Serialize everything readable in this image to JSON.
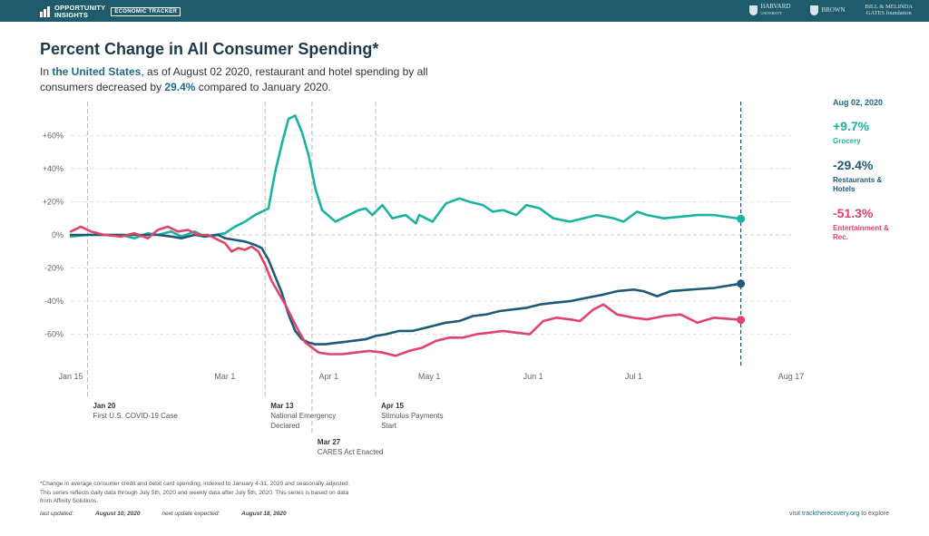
{
  "header": {
    "logo_line1": "OPPORTUNITY",
    "logo_line2": "INSIGHTS",
    "badge": "ECONOMIC TRACKER",
    "partner_harvard": "HARVARD",
    "partner_harvard_sub": "UNIVERSITY",
    "partner_brown": "BROWN",
    "partner_gates_line1": "BILL & MELINDA",
    "partner_gates_line2": "GATES foundation"
  },
  "title": "Percent Change in All Consumer Spending*",
  "subtitle": {
    "p1": "In ",
    "region": "the United States",
    "p2": ", as of August 02 2020, restaurant and hotel spending by all consumers decreased by ",
    "value": "29.4%",
    "p3": " compared to January 2020."
  },
  "legend": {
    "date": "Aug 02, 2020",
    "items": [
      {
        "value": "+9.7%",
        "name": "Grocery",
        "color": "#1ab2a0"
      },
      {
        "value": "-29.4%",
        "name": "Restaurants & Hotels",
        "color": "#1e5a78"
      },
      {
        "value": "-51.3%",
        "name": "Entertainment & Rec.",
        "color": "#e04468"
      }
    ]
  },
  "chart_data": {
    "type": "line",
    "x_type": "date",
    "xlim": [
      "2020-01-15",
      "2020-08-17"
    ],
    "ylim": [
      -75,
      75
    ],
    "y_ticks": [
      60,
      40,
      20,
      0,
      -20,
      -40,
      -60
    ],
    "y_tick_labels": [
      "+60%",
      "+40%",
      "+20%",
      "0%",
      "-20%",
      "-40%",
      "-60%"
    ],
    "x_ticks": [
      "2020-01-15",
      "2020-03-01",
      "2020-04-01",
      "2020-05-01",
      "2020-06-01",
      "2020-07-01",
      "2020-08-17"
    ],
    "x_tick_labels": [
      "Jan 15",
      "Mar 1",
      "Apr 1",
      "May 1",
      "Jun 1",
      "Jul 1",
      "Aug 17"
    ],
    "grid": true,
    "current_date": "2020-08-02",
    "events": [
      {
        "date": "2020-01-20",
        "title": "Jan 20",
        "lines": [
          "First U.S. COVID-19 Case"
        ],
        "level": 1
      },
      {
        "date": "2020-03-13",
        "title": "Mar 13",
        "lines": [
          "National Emergency",
          "Declared"
        ],
        "level": 1
      },
      {
        "date": "2020-03-27",
        "title": "Mar 27",
        "lines": [
          "CARES Act Enacted"
        ],
        "level": 2
      },
      {
        "date": "2020-04-15",
        "title": "Apr 15",
        "lines": [
          "Stimulus Payments",
          "Start"
        ],
        "level": 1
      }
    ],
    "series": [
      {
        "name": "Grocery",
        "color": "#1ab2a0",
        "x": [
          "2020-01-15",
          "2020-01-20",
          "2020-01-25",
          "2020-01-30",
          "2020-02-03",
          "2020-02-07",
          "2020-02-10",
          "2020-02-14",
          "2020-02-17",
          "2020-02-21",
          "2020-02-24",
          "2020-02-27",
          "2020-03-01",
          "2020-03-04",
          "2020-03-07",
          "2020-03-10",
          "2020-03-12",
          "2020-03-14",
          "2020-03-16",
          "2020-03-18",
          "2020-03-20",
          "2020-03-22",
          "2020-03-24",
          "2020-03-26",
          "2020-03-28",
          "2020-03-30",
          "2020-04-03",
          "2020-04-07",
          "2020-04-10",
          "2020-04-12",
          "2020-04-14",
          "2020-04-17",
          "2020-04-20",
          "2020-04-24",
          "2020-04-27",
          "2020-04-28",
          "2020-05-02",
          "2020-05-06",
          "2020-05-10",
          "2020-05-13",
          "2020-05-17",
          "2020-05-20",
          "2020-05-23",
          "2020-05-27",
          "2020-05-30",
          "2020-06-03",
          "2020-06-07",
          "2020-06-12",
          "2020-06-16",
          "2020-06-20",
          "2020-06-25",
          "2020-06-28",
          "2020-07-02",
          "2020-07-05",
          "2020-07-10",
          "2020-07-15",
          "2020-07-20",
          "2020-07-25",
          "2020-08-02"
        ],
        "values": [
          -1,
          0,
          0,
          0,
          -2,
          1,
          0,
          2,
          -1,
          2,
          -1,
          0,
          1,
          5,
          8,
          12,
          14,
          16,
          38,
          55,
          70,
          72,
          62,
          48,
          28,
          15,
          8,
          12,
          15,
          16,
          12,
          18,
          10,
          12,
          7,
          12,
          8,
          19,
          22,
          20,
          18,
          14,
          15,
          12,
          18,
          16,
          10,
          8,
          10,
          12,
          10,
          8,
          14,
          12,
          10,
          11,
          12,
          12,
          9.7
        ]
      },
      {
        "name": "Restaurants & Hotels",
        "color": "#1e5a78",
        "x": [
          "2020-01-15",
          "2020-01-20",
          "2020-01-25",
          "2020-01-30",
          "2020-02-03",
          "2020-02-07",
          "2020-02-10",
          "2020-02-14",
          "2020-02-17",
          "2020-02-21",
          "2020-02-24",
          "2020-02-28",
          "2020-03-01",
          "2020-03-04",
          "2020-03-07",
          "2020-03-10",
          "2020-03-12",
          "2020-03-14",
          "2020-03-16",
          "2020-03-18",
          "2020-03-20",
          "2020-03-22",
          "2020-03-24",
          "2020-03-26",
          "2020-03-28",
          "2020-03-31",
          "2020-04-04",
          "2020-04-08",
          "2020-04-12",
          "2020-04-15",
          "2020-04-18",
          "2020-04-22",
          "2020-04-26",
          "2020-04-28",
          "2020-05-02",
          "2020-05-06",
          "2020-05-10",
          "2020-05-14",
          "2020-05-18",
          "2020-05-22",
          "2020-05-26",
          "2020-05-30",
          "2020-06-03",
          "2020-06-07",
          "2020-06-12",
          "2020-06-17",
          "2020-06-22",
          "2020-06-26",
          "2020-07-01",
          "2020-07-04",
          "2020-07-08",
          "2020-07-12",
          "2020-07-18",
          "2020-07-25",
          "2020-08-02"
        ],
        "values": [
          0,
          0,
          0,
          0,
          0,
          0,
          0,
          -1,
          -2,
          0,
          -1,
          0,
          -2,
          -3,
          -4,
          -6,
          -8,
          -15,
          -25,
          -35,
          -48,
          -58,
          -63,
          -65,
          -66,
          -66,
          -65,
          -64,
          -63,
          -61,
          -60,
          -58,
          -58,
          -57,
          -55,
          -53,
          -52,
          -49,
          -48,
          -46,
          -45,
          -44,
          -42,
          -41,
          -40,
          -38,
          -36,
          -34,
          -33,
          -34,
          -37,
          -34,
          -33,
          -32,
          -29.4
        ]
      },
      {
        "name": "Entertainment & Rec.",
        "color": "#e04468",
        "x": [
          "2020-01-15",
          "2020-01-18",
          "2020-01-21",
          "2020-01-25",
          "2020-01-30",
          "2020-02-03",
          "2020-02-07",
          "2020-02-10",
          "2020-02-13",
          "2020-02-16",
          "2020-02-19",
          "2020-02-22",
          "2020-02-25",
          "2020-02-28",
          "2020-03-01",
          "2020-03-03",
          "2020-03-05",
          "2020-03-07",
          "2020-03-09",
          "2020-03-11",
          "2020-03-13",
          "2020-03-15",
          "2020-03-17",
          "2020-03-19",
          "2020-03-21",
          "2020-03-23",
          "2020-03-25",
          "2020-03-27",
          "2020-03-29",
          "2020-04-01",
          "2020-04-05",
          "2020-04-09",
          "2020-04-13",
          "2020-04-17",
          "2020-04-21",
          "2020-04-25",
          "2020-04-29",
          "2020-05-03",
          "2020-05-07",
          "2020-05-11",
          "2020-05-15",
          "2020-05-19",
          "2020-05-23",
          "2020-05-27",
          "2020-05-31",
          "2020-06-04",
          "2020-06-08",
          "2020-06-12",
          "2020-06-15",
          "2020-06-19",
          "2020-06-22",
          "2020-06-26",
          "2020-07-01",
          "2020-07-05",
          "2020-07-10",
          "2020-07-15",
          "2020-07-20",
          "2020-07-25",
          "2020-08-02"
        ],
        "values": [
          2,
          5,
          2,
          0,
          -1,
          1,
          -2,
          3,
          5,
          2,
          3,
          0,
          0,
          -3,
          -5,
          -10,
          -8,
          -9,
          -7,
          -10,
          -18,
          -28,
          -35,
          -42,
          -50,
          -58,
          -65,
          -68,
          -71,
          -72,
          -72,
          -71,
          -70,
          -71,
          -73,
          -70,
          -68,
          -64,
          -62,
          -62,
          -60,
          -59,
          -58,
          -59,
          -60,
          -52,
          -50,
          -51,
          -52,
          -45,
          -42,
          -48,
          -50,
          -51,
          -49,
          -48,
          -53,
          -50,
          -51.3
        ]
      }
    ]
  },
  "footnote": {
    "line1": "*Change in average consumer credit and debit card spending, indexed to January 4-31, 2020 and seasonally adjusted.",
    "line2": "This series reflects daily data through July 5th, 2020 and weekly data after July 5th, 2020. This series is based on data",
    "line3": "from Affinity Solutions."
  },
  "updated": {
    "last_label": "last updated: ",
    "last_value": "August 10, 2020",
    "next_label": "next update expected: ",
    "next_value": "August 18, 2020"
  },
  "visit": {
    "p1": "visit ",
    "link": "tracktherecovery.org",
    "p2": " to explore"
  }
}
